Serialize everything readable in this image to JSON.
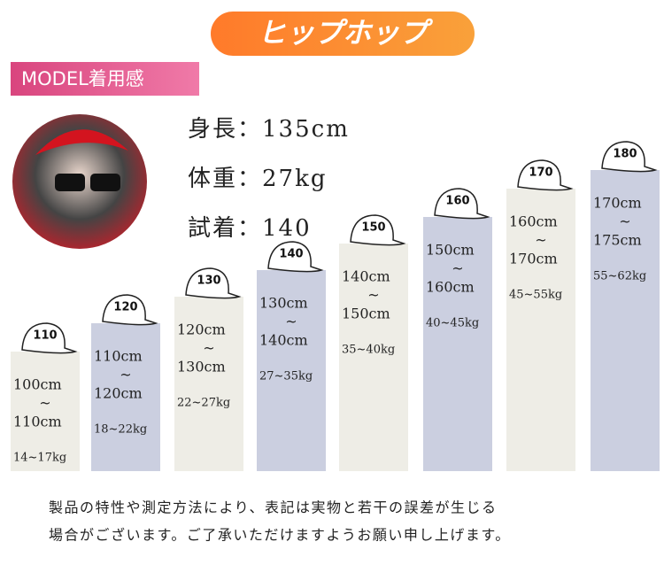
{
  "header": {
    "title": "ヒップホップ",
    "badge": "MODEL着用感"
  },
  "model": {
    "stats": [
      "身長：135cm",
      "体重：27kg",
      "試着：140"
    ]
  },
  "sizes": [
    {
      "label": "110",
      "height": [
        "100cm",
        "~",
        "110cm"
      ],
      "weight": "14~17kg"
    },
    {
      "label": "120",
      "height": [
        "110cm",
        "~",
        "120cm"
      ],
      "weight": "18~22kg"
    },
    {
      "label": "130",
      "height": [
        "120cm",
        "~",
        "130cm"
      ],
      "weight": "22~27kg"
    },
    {
      "label": "140",
      "height": [
        "130cm",
        "~",
        "140cm"
      ],
      "weight": "27~35kg"
    },
    {
      "label": "150",
      "height": [
        "140cm",
        "~",
        "150cm"
      ],
      "weight": "35~40kg"
    },
    {
      "label": "160",
      "height": [
        "150cm",
        "~",
        "160cm"
      ],
      "weight": "40~45kg"
    },
    {
      "label": "170",
      "height": [
        "160cm",
        "~",
        "170cm"
      ],
      "weight": "45~55kg"
    },
    {
      "label": "180",
      "height": [
        "170cm",
        "~",
        "175cm"
      ],
      "weight": "55~62kg"
    }
  ],
  "footnote": [
    "製品の特性や測定方法により、表記は実物と若干の誤差が生じる",
    "場合がございます。ご了承いただけますようお願い申し上げます。"
  ]
}
